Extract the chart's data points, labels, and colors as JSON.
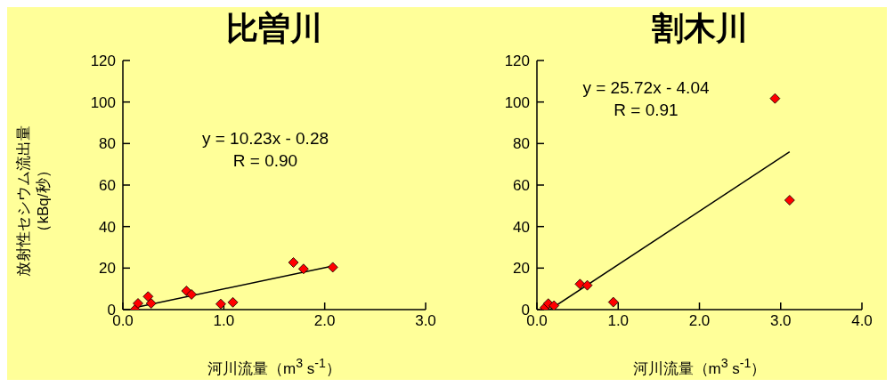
{
  "chart_data": [
    {
      "type": "scatter",
      "title": "比曽川",
      "xlabel": "河川流量（m$^{3}$ s$^{-1}$）",
      "ylabel": "放射性セシウム流出量（kBq/秒）",
      "legend": false,
      "xlim": [
        0,
        3
      ],
      "xticks": [
        {
          "value": 0,
          "label": "0.0"
        },
        {
          "value": 1,
          "label": "1.0"
        },
        {
          "value": 2,
          "label": "2.0"
        },
        {
          "value": 3,
          "label": "3.0"
        }
      ],
      "ylim": [
        0,
        120
      ],
      "yticks": [
        0,
        20,
        40,
        60,
        80,
        100,
        120
      ],
      "annotations": [
        "y = 10.23x - 0.28",
        "R = 0.90"
      ],
      "series": [
        {
          "color": "#ff0000",
          "marker": "diamond",
          "x": [
            0.12,
            0.15,
            0.25,
            0.28,
            0.63,
            0.68,
            0.97,
            1.09,
            1.69,
            1.79,
            2.08
          ],
          "values": [
            0,
            3,
            6.3,
            3,
            9,
            7.3,
            2.7,
            3.5,
            22.7,
            19.6,
            20.4
          ]
        },
        {
          "type": "line",
          "color": "#000000",
          "marker": "none",
          "x": [
            0.12,
            2.08
          ],
          "values": [
            1,
            21
          ]
        }
      ]
    },
    {
      "type": "scatter",
      "title": "割木川",
      "xlabel": "河川流量（m$^{3}$ s$^{-1}$）",
      "legend": false,
      "xlim": [
        0,
        4
      ],
      "xticks": [
        {
          "value": 0,
          "label": "0.0"
        },
        {
          "value": 1,
          "label": "1.0"
        },
        {
          "value": 2,
          "label": "2.0"
        },
        {
          "value": 3,
          "label": "3.0"
        },
        {
          "value": 4,
          "label": "4.0"
        }
      ],
      "ylim": [
        0,
        120
      ],
      "yticks": [
        0,
        20,
        40,
        60,
        80,
        100,
        120
      ],
      "annotations": [
        "y = 25.72x - 4.04",
        "R = 0.91"
      ],
      "series": [
        {
          "color": "#ff0000",
          "marker": "diamond",
          "x": [
            0.09,
            0.1,
            0.14,
            0.21,
            0.53,
            0.62,
            0.94,
            2.93,
            3.11
          ],
          "values": [
            0,
            1,
            2.9,
            1.9,
            12.3,
            11.7,
            3.6,
            101.7,
            52.7
          ]
        },
        {
          "type": "line",
          "color": "#000000",
          "marker": "none",
          "x": [
            0.16,
            3.11
          ],
          "values": [
            0,
            76
          ]
        }
      ]
    }
  ]
}
